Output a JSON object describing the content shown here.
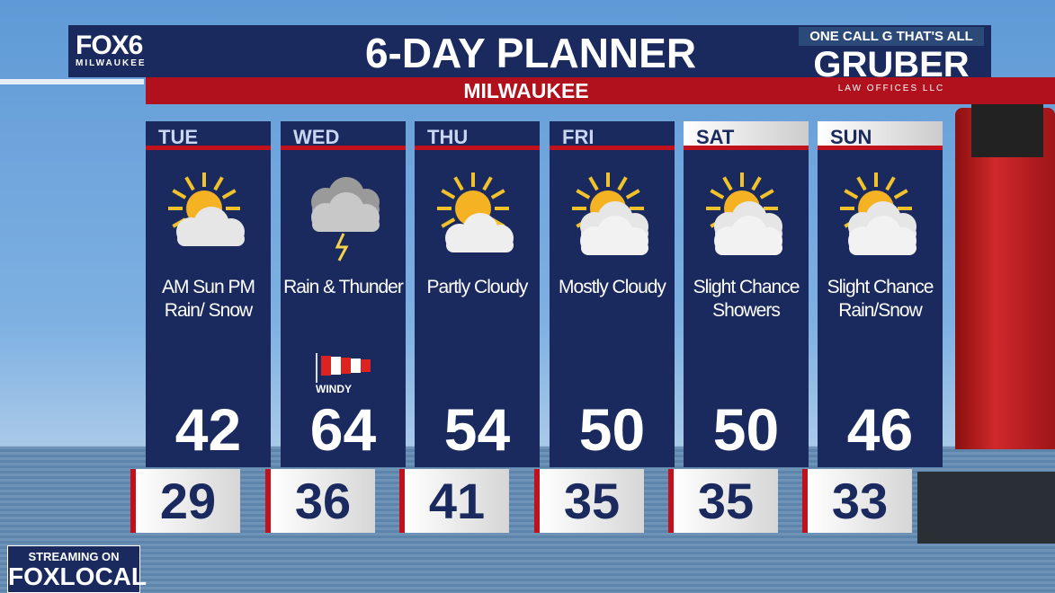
{
  "header": {
    "logo": "FOX6",
    "logo_sub": "MILWAUKEE",
    "title": "6-DAY PLANNER",
    "city": "MILWAUKEE"
  },
  "sponsor": {
    "tagline": "ONE CALL G THAT'S ALL",
    "name": "GRUBER",
    "sub": "LAW OFFICES LLC"
  },
  "days": [
    {
      "day": "TUE",
      "condition": "AM Sun PM Rain/ Snow",
      "icon": "sun-cloud-icon",
      "high": "42",
      "low": "29"
    },
    {
      "day": "WED",
      "condition": "Rain & Thunder",
      "icon": "thunderstorm-icon",
      "high": "64",
      "low": "36",
      "badge": "WINDY"
    },
    {
      "day": "THU",
      "condition": "Partly Cloudy",
      "icon": "partly-cloudy-icon",
      "high": "54",
      "low": "41"
    },
    {
      "day": "FRI",
      "condition": "Mostly Cloudy",
      "icon": "mostly-cloudy-icon",
      "high": "50",
      "low": "35"
    },
    {
      "day": "SAT",
      "condition": "Slight Chance Showers",
      "icon": "mostly-cloudy-icon",
      "high": "50",
      "low": "35"
    },
    {
      "day": "SUN",
      "condition": "Slight Chance Rain/Snow",
      "icon": "mostly-cloudy-icon",
      "high": "46",
      "low": "33"
    }
  ],
  "footer": {
    "line1": "STREAMING ON",
    "line2": "FOXLOCAL"
  },
  "colors": {
    "navy": "#1a2a5e",
    "red": "#b0111c"
  }
}
